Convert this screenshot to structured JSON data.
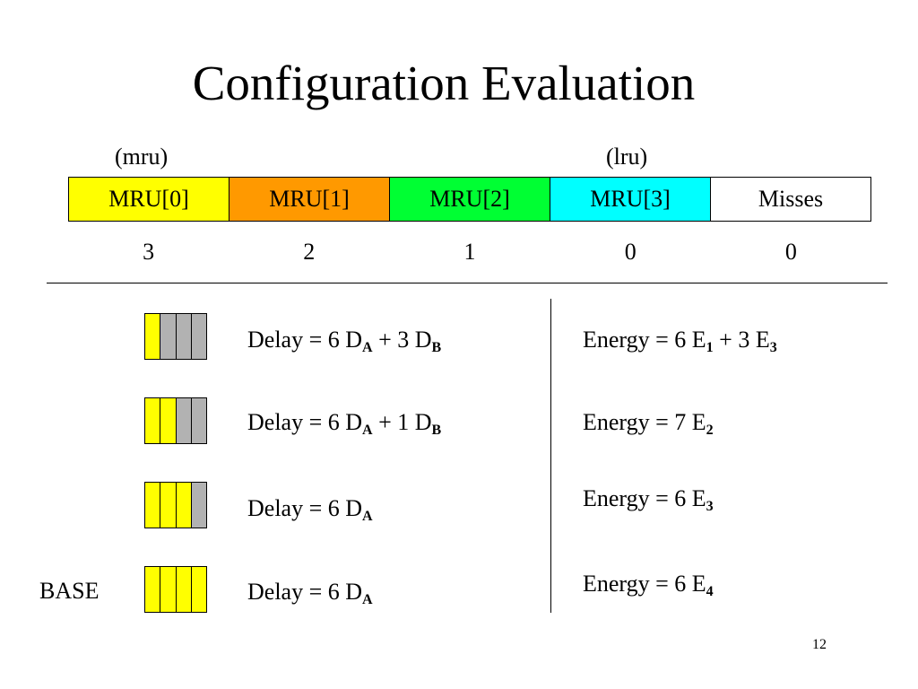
{
  "title": "Configuration Evaluation",
  "labels": {
    "mru": "(mru)",
    "lru": "(lru)"
  },
  "table": {
    "headers": [
      {
        "text": "MRU[0]",
        "color": "#ffff00"
      },
      {
        "text": "MRU[1]",
        "color": "#ff9900"
      },
      {
        "text": "MRU[2]",
        "color": "#00ff33"
      },
      {
        "text": "MRU[3]",
        "color": "#00ffff"
      },
      {
        "text": "Misses",
        "color": "#ffffff"
      }
    ],
    "counts": [
      "3",
      "2",
      "1",
      "0",
      "0"
    ]
  },
  "colors": {
    "enabled_way": "#ffff00",
    "disabled_way": "#b2b2b2"
  },
  "configs": [
    {
      "ways": [
        "enabled",
        "disabled",
        "disabled",
        "disabled"
      ],
      "delay": {
        "prefix": "Delay =  6 D",
        "sub1": "A",
        "mid": "  +  3 D",
        "sub2": "B"
      },
      "energy": {
        "prefix": "Energy =  6 E",
        "sub1": "1",
        "mid": "  +  3 E",
        "sub2": "3"
      }
    },
    {
      "ways": [
        "enabled",
        "enabled",
        "disabled",
        "disabled"
      ],
      "delay": {
        "prefix": "Delay =  6 D",
        "sub1": "A",
        "mid": "  +  1 D",
        "sub2": "B"
      },
      "energy": {
        "prefix": "Energy =  7 E",
        "sub1": "2"
      }
    },
    {
      "ways": [
        "enabled",
        "enabled",
        "enabled",
        "disabled"
      ],
      "delay": {
        "prefix": "Delay =  6 D",
        "sub1": "A"
      },
      "energy": {
        "prefix": "Energy =  6 E",
        "sub1": "3"
      }
    },
    {
      "base_label": "BASE",
      "ways": [
        "enabled",
        "enabled",
        "enabled",
        "enabled"
      ],
      "delay": {
        "prefix": "Delay =  6 D",
        "sub1": "A"
      },
      "energy": {
        "prefix": "Energy =  6 E",
        "sub1": "4"
      }
    }
  ],
  "page_number": "12"
}
